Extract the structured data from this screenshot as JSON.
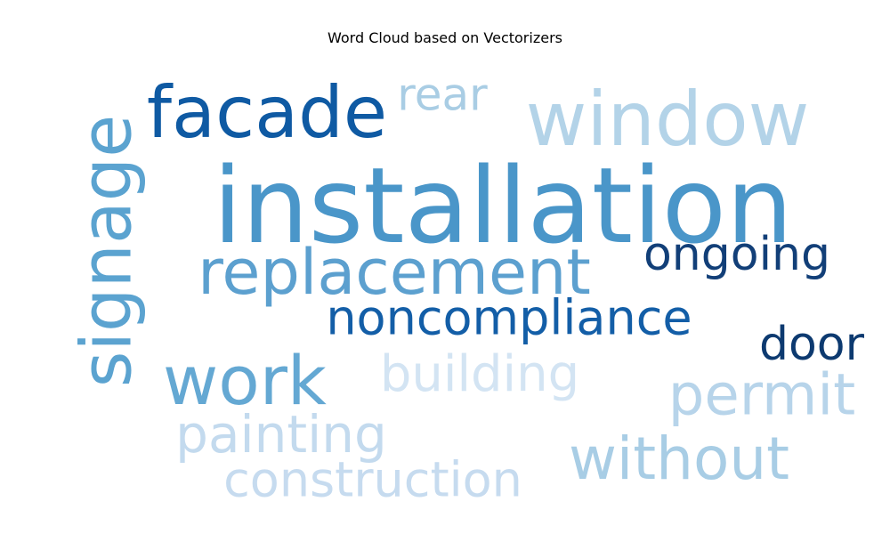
{
  "chart_data": {
    "type": "wordcloud",
    "title": "Word Cloud based on Vectorizers",
    "colormap": "Blues",
    "words": [
      {
        "text": "installation",
        "color": "#4a96c9"
      },
      {
        "text": "window",
        "color": "#b3d3e8"
      },
      {
        "text": "facade",
        "color": "#0f5aa3"
      },
      {
        "text": "rear",
        "color": "#a9cde4"
      },
      {
        "text": "signage",
        "color": "#5ba3d0"
      },
      {
        "text": "replacement",
        "color": "#5ca0cf"
      },
      {
        "text": "ongoing",
        "color": "#123f78"
      },
      {
        "text": "noncompliance",
        "color": "#135ea7"
      },
      {
        "text": "work",
        "color": "#64a8d3"
      },
      {
        "text": "door",
        "color": "#0d3a70"
      },
      {
        "text": "building",
        "color": "#d3e4f3"
      },
      {
        "text": "permit",
        "color": "#b7d4ea"
      },
      {
        "text": "painting",
        "color": "#c3daee"
      },
      {
        "text": "without",
        "color": "#a8cde5"
      },
      {
        "text": "construction",
        "color": "#c6dbef"
      }
    ]
  }
}
